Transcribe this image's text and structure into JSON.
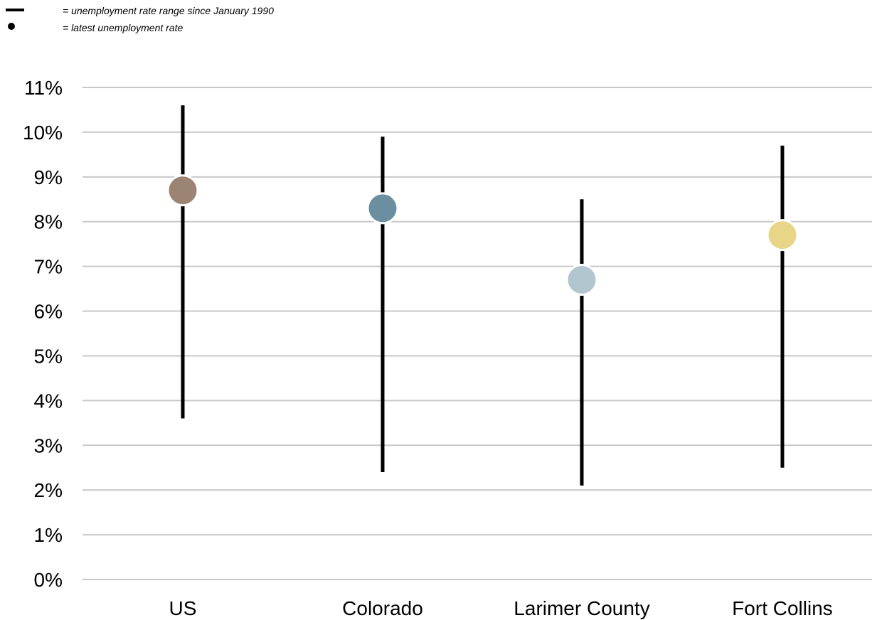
{
  "legend": {
    "range_label": "= unemployment rate range since January 1990",
    "latest_label": "= latest unemployment rate"
  },
  "chart_data": {
    "type": "range-dot",
    "title": "",
    "xlabel": "",
    "ylabel": "",
    "ylim": [
      0,
      11
    ],
    "y_ticks": [
      0,
      1,
      2,
      3,
      4,
      5,
      6,
      7,
      8,
      9,
      10,
      11
    ],
    "y_tick_labels": [
      "0%",
      "1%",
      "2%",
      "3%",
      "4%",
      "5%",
      "6%",
      "7%",
      "8%",
      "9%",
      "10%",
      "11%"
    ],
    "grid": true,
    "legend_position": "top-left",
    "categories": [
      "US",
      "Colorado",
      "Larimer County",
      "Fort Collins"
    ],
    "series": [
      {
        "name": "unemployment rate range since January 1990",
        "min": [
          3.6,
          2.4,
          2.1,
          2.5
        ],
        "max": [
          10.6,
          9.9,
          8.5,
          9.7
        ]
      },
      {
        "name": "latest unemployment rate",
        "values": [
          8.7,
          8.3,
          6.7,
          7.7
        ]
      }
    ],
    "dot_colors": [
      "#9c8474",
      "#6b8fa0",
      "#b1c6cf",
      "#e8d588"
    ],
    "range_color": "#000000",
    "grid_color": "#c8c8c8"
  }
}
